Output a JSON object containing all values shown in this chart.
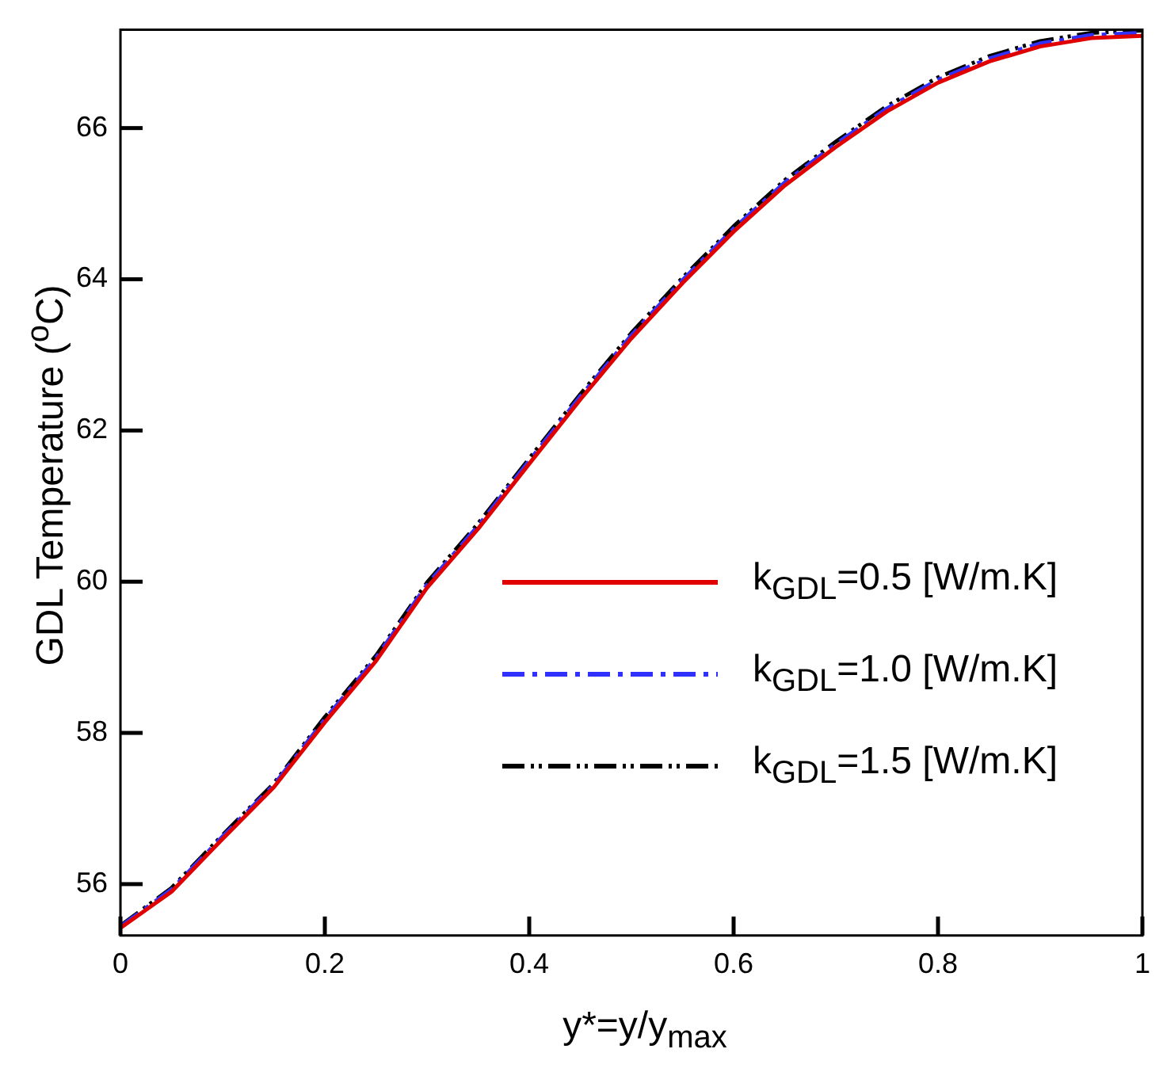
{
  "chart_data": {
    "type": "line",
    "xlabel": "y*=y/y$_{max}$",
    "ylabel": "GDL Temperature ($^{o}$C)",
    "x": [
      0,
      0.05,
      0.1,
      0.15,
      0.2,
      0.25,
      0.3,
      0.35,
      0.4,
      0.45,
      0.5,
      0.55,
      0.6,
      0.65,
      0.7,
      0.75,
      0.8,
      0.85,
      0.9,
      0.95,
      1
    ],
    "series": [
      {
        "name": "k$_{GDL}$=0.5 [W/m.K]",
        "color": "#e00000",
        "line_style": "solid",
        "values": [
          55.42,
          55.9,
          56.6,
          57.28,
          58.14,
          58.95,
          59.92,
          60.7,
          61.56,
          62.41,
          63.22,
          63.95,
          64.63,
          65.24,
          65.75,
          66.22,
          66.6,
          66.88,
          67.08,
          67.19,
          67.22
        ]
      },
      {
        "name": "k$_{GDL}$=1.0 [W/m.K]",
        "color": "#3030ff",
        "line_style": "dashed",
        "values": [
          55.44,
          55.93,
          56.63,
          57.31,
          58.18,
          58.99,
          59.96,
          60.74,
          61.6,
          62.45,
          63.26,
          63.99,
          64.67,
          65.28,
          65.79,
          66.26,
          66.64,
          66.92,
          67.12,
          67.23,
          67.26
        ]
      },
      {
        "name": "k$_{GDL}$=1.5 [W/m.K]",
        "color": "#000000",
        "line_style": "dotted",
        "values": [
          55.45,
          55.95,
          56.65,
          57.33,
          58.21,
          59.02,
          59.99,
          60.77,
          61.63,
          62.48,
          63.29,
          64.02,
          64.7,
          65.31,
          65.82,
          66.29,
          66.67,
          66.95,
          67.15,
          67.26,
          67.29
        ]
      }
    ],
    "xlim": [
      0,
      1
    ],
    "xticks": [
      0,
      0.2,
      0.4,
      0.6,
      0.8,
      1
    ],
    "ylim": [
      55.32,
      67.3
    ],
    "yticks": [
      56,
      58,
      60,
      62,
      64,
      66
    ],
    "legend": "right",
    "grid": false,
    "marker": "none"
  }
}
